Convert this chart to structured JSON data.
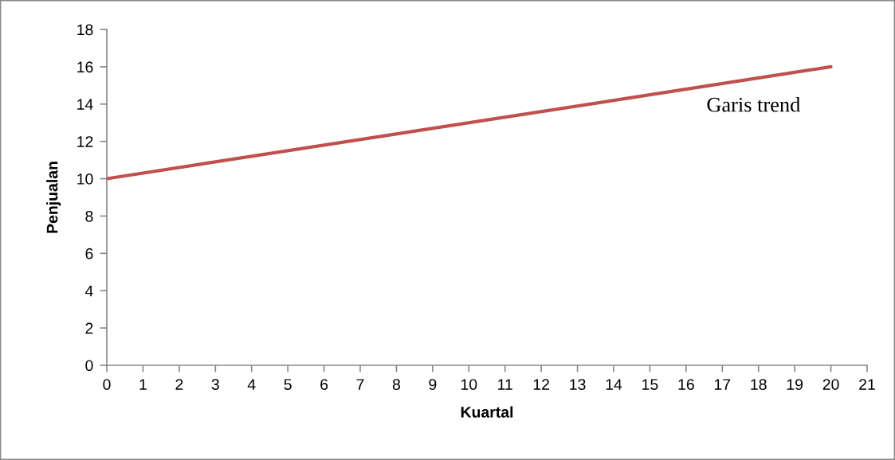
{
  "chart_data": {
    "type": "line",
    "xlabel": "Kuartal",
    "ylabel": "Penjualan",
    "series": [
      {
        "name": "Garis trend",
        "color": "#c0504d",
        "x": [
          0,
          20
        ],
        "values": [
          10,
          16
        ]
      }
    ],
    "xlim": [
      0,
      21
    ],
    "xticks": [
      0,
      1,
      2,
      3,
      4,
      5,
      6,
      7,
      8,
      9,
      10,
      11,
      12,
      13,
      14,
      15,
      16,
      17,
      18,
      19,
      20,
      21
    ],
    "ylim": [
      0,
      18
    ],
    "yticks": [
      0,
      2,
      4,
      6,
      8,
      10,
      12,
      14,
      16,
      18
    ],
    "grid": false,
    "legend": false,
    "marker": "none",
    "line_style": "solid"
  }
}
